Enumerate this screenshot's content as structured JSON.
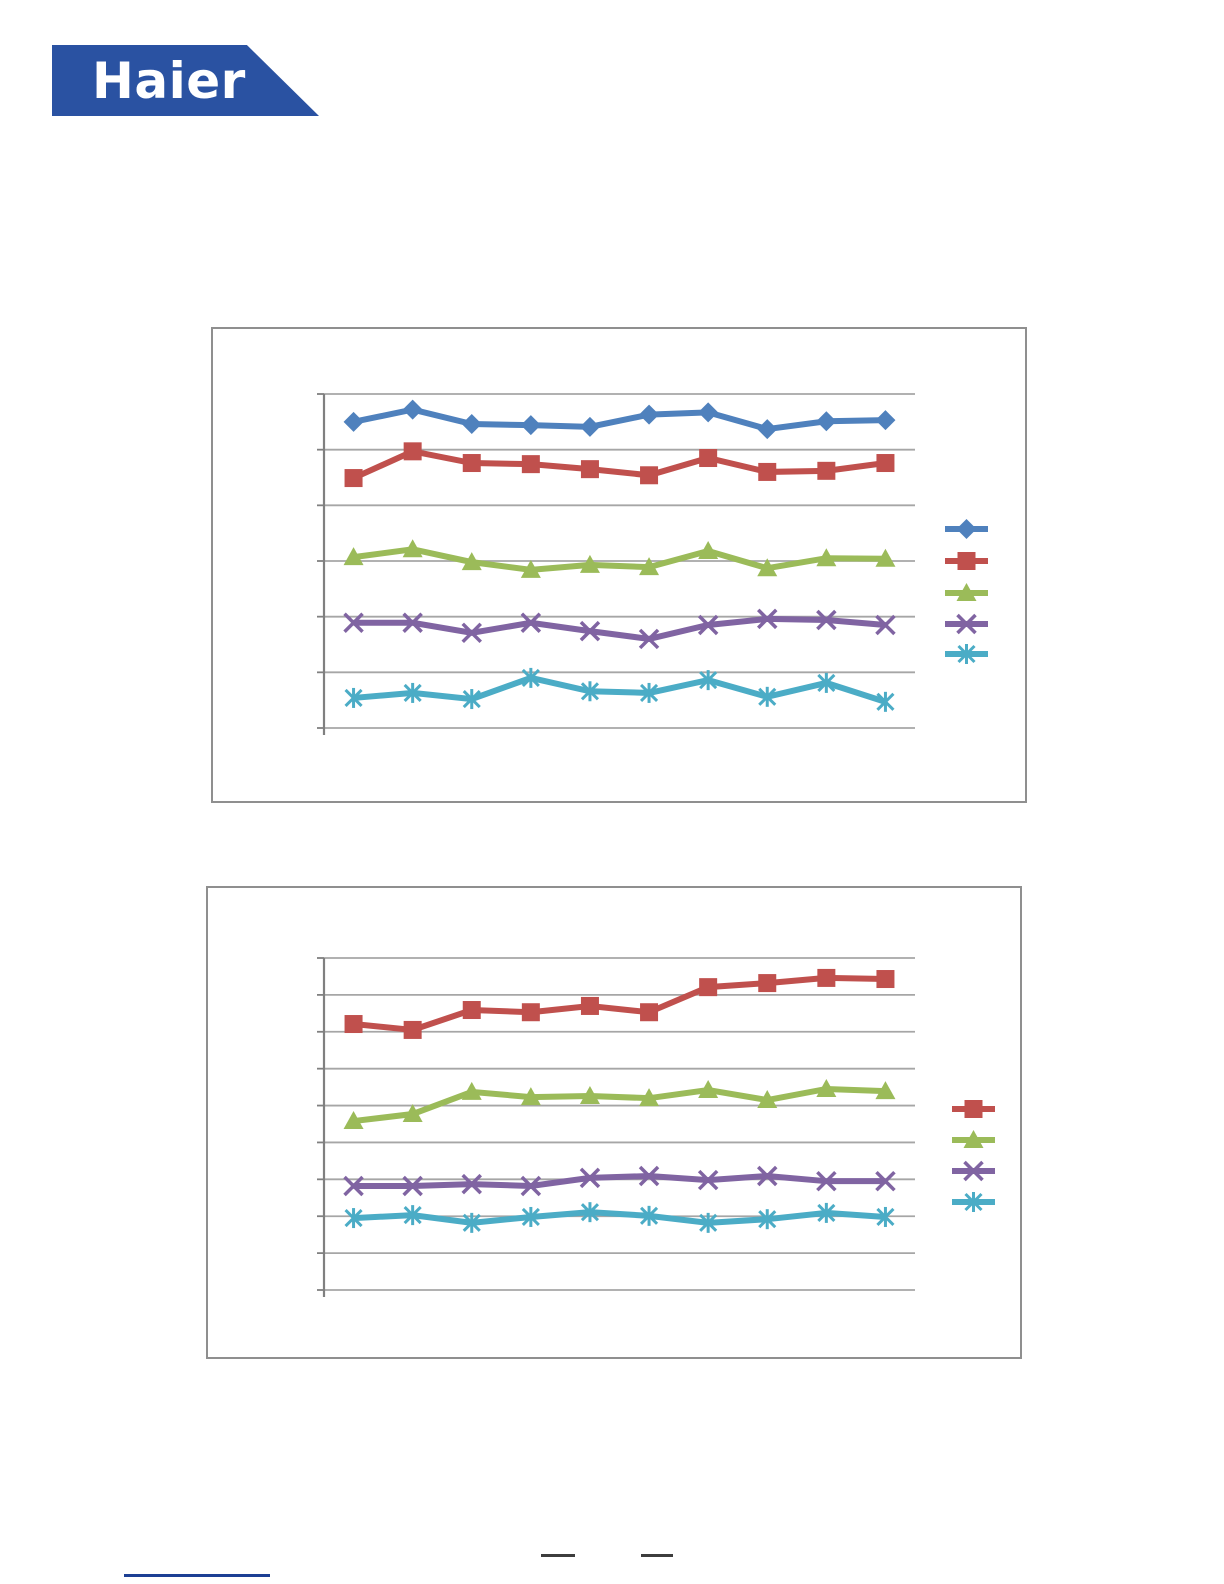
{
  "logo": {
    "text": "Haier",
    "bg_color": "#2A52A2",
    "text_color": "#FFFFFF"
  },
  "chart_data": [
    {
      "type": "line",
      "title": "",
      "x": [
        1,
        2,
        3,
        4,
        5,
        6,
        7,
        8,
        9,
        10
      ],
      "x_labels_visible": false,
      "y_labels_visible": false,
      "ylim": [
        0,
        6
      ],
      "gridline_interval": 1,
      "grid": "horizontal",
      "grid_color": "#A6A6A6",
      "axis_color": "#808080",
      "legend_position": "right",
      "legend_text_visible": false,
      "series": [
        {
          "name": "blue-diamond",
          "marker": "diamond",
          "color": "#4F81BD",
          "values": [
            5.5,
            5.72,
            5.46,
            5.44,
            5.41,
            5.63,
            5.67,
            5.37,
            5.51,
            5.53
          ]
        },
        {
          "name": "red-square",
          "marker": "square",
          "color": "#C0504D",
          "values": [
            4.49,
            4.97,
            4.76,
            4.74,
            4.65,
            4.54,
            4.85,
            4.6,
            4.62,
            4.76
          ]
        },
        {
          "name": "green-triangle",
          "marker": "triangle",
          "color": "#9BBB59",
          "values": [
            3.07,
            3.21,
            2.98,
            2.84,
            2.93,
            2.89,
            3.18,
            2.87,
            3.05,
            3.04
          ]
        },
        {
          "name": "purple-x",
          "marker": "x",
          "color": "#8064A2",
          "values": [
            1.89,
            1.89,
            1.71,
            1.89,
            1.74,
            1.6,
            1.85,
            1.96,
            1.94,
            1.85
          ]
        },
        {
          "name": "cyan-asterisk",
          "marker": "asterisk",
          "color": "#4BACC6",
          "values": [
            0.54,
            0.63,
            0.52,
            0.9,
            0.66,
            0.63,
            0.86,
            0.56,
            0.81,
            0.47
          ]
        }
      ]
    },
    {
      "type": "line",
      "title": "",
      "x": [
        1,
        2,
        3,
        4,
        5,
        6,
        7,
        8,
        9,
        10
      ],
      "x_labels_visible": false,
      "y_labels_visible": false,
      "ylim": [
        0,
        9
      ],
      "gridline_interval": 1,
      "grid": "horizontal",
      "grid_color": "#A6A6A6",
      "axis_color": "#808080",
      "legend_position": "right",
      "legend_text_visible": false,
      "series": [
        {
          "name": "red-square",
          "marker": "square",
          "color": "#C0504D",
          "values": [
            7.21,
            7.05,
            7.59,
            7.53,
            7.7,
            7.53,
            8.21,
            8.32,
            8.46,
            8.43
          ]
        },
        {
          "name": "green-triangle",
          "marker": "triangle",
          "color": "#9BBB59",
          "values": [
            4.58,
            4.77,
            5.37,
            5.23,
            5.26,
            5.2,
            5.42,
            5.15,
            5.45,
            5.39
          ]
        },
        {
          "name": "purple-x",
          "marker": "x",
          "color": "#8064A2",
          "values": [
            2.82,
            2.82,
            2.87,
            2.82,
            3.04,
            3.09,
            2.98,
            3.09,
            2.95,
            2.95
          ]
        },
        {
          "name": "cyan-asterisk",
          "marker": "asterisk",
          "color": "#4BACC6",
          "values": [
            1.95,
            2.03,
            1.82,
            1.98,
            2.11,
            2.01,
            1.82,
            1.92,
            2.09,
            1.98
          ]
        }
      ]
    }
  ]
}
